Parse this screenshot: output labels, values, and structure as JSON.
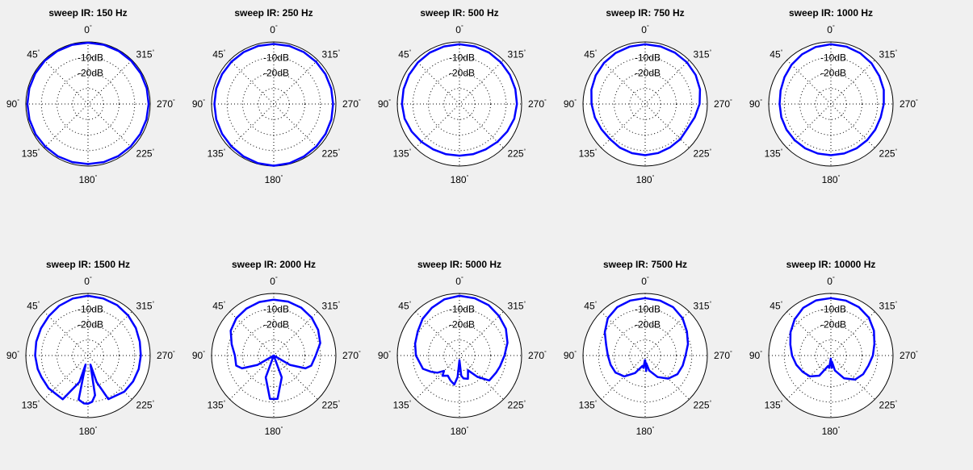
{
  "figure": {
    "background": "#f0f0f0",
    "axes_background": "#ffffff",
    "line_color": "#0000ff",
    "grid_color": "#000000"
  },
  "polar_axes": {
    "ring_labels": [
      "-10dB",
      "-20dB"
    ],
    "ring_db": [
      0,
      -10,
      -20,
      -30
    ],
    "db_range": [
      -40,
      0
    ],
    "angle_labels": [
      "0",
      "45",
      "90",
      "135",
      "180",
      "225",
      "270",
      "315"
    ],
    "angle_label_angles": [
      0,
      45,
      90,
      135,
      180,
      225,
      270,
      315
    ],
    "degree_symbol": "°",
    "zero_direction": "top",
    "angle_direction": "counterclockwise",
    "spokes_every_deg": 45,
    "grid": "dotted"
  },
  "chart_data": [
    {
      "type": "polar-line",
      "title": "sweep IR: 150 Hz",
      "angles": [
        0,
        15,
        30,
        45,
        60,
        75,
        90,
        105,
        120,
        135,
        150,
        165,
        180,
        195,
        210,
        225,
        240,
        255,
        270,
        285,
        300,
        315,
        330,
        345
      ],
      "r": [
        -0.5,
        -0.5,
        -0.6,
        -0.6,
        -0.8,
        -0.9,
        -1,
        -1,
        -1,
        -1.1,
        -1.1,
        -1.2,
        -1.3,
        -1.2,
        -1.2,
        -1.2,
        -1.2,
        -1.1,
        -1,
        -0.9,
        -0.8,
        -0.7,
        -0.6,
        -0.5
      ]
    },
    {
      "type": "polar-line",
      "title": "sweep IR: 250 Hz",
      "angles": [
        0,
        15,
        30,
        45,
        60,
        75,
        90,
        105,
        120,
        135,
        150,
        165,
        180,
        195,
        210,
        225,
        240,
        255,
        270,
        285,
        300,
        315,
        330,
        345
      ],
      "r": [
        -1.3,
        -1.3,
        -1.4,
        -1.5,
        -1.6,
        -1.7,
        -1.8,
        -1.7,
        -1.6,
        -1.4,
        -1,
        -0.5,
        -0.2,
        -0.5,
        -1,
        -1.3,
        -1.5,
        -1.6,
        -1.8,
        -1.7,
        -1.6,
        -1.5,
        -1.4,
        -1.3
      ]
    },
    {
      "type": "polar-line",
      "title": "sweep IR: 500 Hz",
      "angles": [
        0,
        15,
        30,
        45,
        60,
        75,
        90,
        105,
        120,
        135,
        150,
        165,
        180,
        195,
        210,
        225,
        240,
        255,
        270,
        285,
        300,
        315,
        330,
        345
      ],
      "r": [
        -1.5,
        -1.6,
        -1.8,
        -2.2,
        -2.5,
        -2.8,
        -3,
        -3.5,
        -4.5,
        -5.5,
        -6.2,
        -6.5,
        -6.7,
        -6.5,
        -6.2,
        -5.5,
        -4.5,
        -3.5,
        -3,
        -2.8,
        -2.5,
        -2.2,
        -1.8,
        -1.6
      ]
    },
    {
      "type": "polar-line",
      "title": "sweep IR: 750 Hz",
      "angles": [
        0,
        15,
        30,
        45,
        60,
        75,
        90,
        105,
        120,
        135,
        150,
        165,
        180,
        195,
        210,
        225,
        240,
        255,
        270,
        285,
        300,
        315,
        330,
        345
      ],
      "r": [
        -1.5,
        -1.7,
        -2,
        -2.5,
        -3.2,
        -4.2,
        -5.5,
        -6.5,
        -7.5,
        -8,
        -7.5,
        -7.2,
        -7,
        -7.3,
        -7.8,
        -8,
        -8.5,
        -7,
        -5,
        -3.5,
        -2.5,
        -2,
        -1.8,
        -1.6
      ]
    },
    {
      "type": "polar-line",
      "title": "sweep IR: 1000 Hz",
      "angles": [
        0,
        15,
        30,
        45,
        60,
        75,
        90,
        105,
        120,
        135,
        150,
        165,
        180,
        195,
        210,
        225,
        240,
        255,
        270,
        285,
        300,
        315,
        330,
        345
      ],
      "r": [
        -1.5,
        -2,
        -3,
        -4.2,
        -5.5,
        -6.5,
        -7,
        -7,
        -7,
        -7,
        -7,
        -7,
        -7,
        -7,
        -7,
        -7,
        -7,
        -6.8,
        -6,
        -4.8,
        -4,
        -3,
        -2.2,
        -1.7
      ]
    },
    {
      "type": "polar-line",
      "title": "sweep IR: 1500 Hz",
      "angles": [
        0,
        15,
        30,
        45,
        60,
        75,
        90,
        105,
        115,
        130,
        150,
        162,
        165,
        168,
        175,
        180,
        185,
        190,
        195,
        198,
        205,
        225,
        240,
        255,
        270,
        285,
        300,
        315,
        330,
        345
      ],
      "r": [
        -1.5,
        -2,
        -3,
        -4.2,
        -5,
        -5.5,
        -6,
        -6.5,
        -7,
        -7,
        -7.5,
        -22,
        -34,
        -11,
        -9,
        -9,
        -10,
        -14,
        -34,
        -22,
        -9,
        -7,
        -6.5,
        -6.2,
        -6,
        -5.5,
        -4.5,
        -3.5,
        -2.5,
        -2
      ]
    },
    {
      "type": "polar-line",
      "title": "sweep IR: 2000 Hz",
      "angles": [
        0,
        15,
        30,
        45,
        60,
        75,
        90,
        105,
        112,
        120,
        135,
        160,
        175,
        180,
        185,
        200,
        225,
        240,
        248,
        255,
        270,
        285,
        300,
        315,
        330,
        345
      ],
      "r": [
        -4,
        -4.3,
        -5,
        -6,
        -8,
        -12,
        -15,
        -15,
        -18,
        -28,
        -40,
        -25,
        -12,
        -12,
        -12,
        -25,
        -40,
        -28,
        -18,
        -15,
        -13,
        -9,
        -7,
        -5.5,
        -4.5,
        -4
      ]
    },
    {
      "type": "polar-line",
      "title": "sweep IR: 5000 Hz",
      "angles": [
        0,
        15,
        30,
        45,
        60,
        75,
        90,
        100,
        110,
        120,
        128,
        135,
        140,
        150,
        160,
        170,
        175,
        180,
        185,
        190,
        200,
        210,
        220,
        230,
        245,
        255,
        270,
        285,
        300,
        315,
        330,
        345
      ],
      "r": [
        -1.5,
        -2.5,
        -4.5,
        -6.5,
        -9,
        -10.5,
        -12,
        -14,
        -15,
        -19,
        -22,
        -26,
        -23,
        -25,
        -23,
        -21,
        -26,
        -37,
        -27,
        -25,
        -24,
        -29,
        -22,
        -15,
        -14,
        -13,
        -11,
        -8,
        -5.5,
        -4,
        -2.5,
        -1.8
      ]
    },
    {
      "type": "polar-line",
      "title": "sweep IR: 7500 Hz",
      "angles": [
        0,
        15,
        30,
        45,
        60,
        75,
        90,
        105,
        120,
        135,
        150,
        165,
        172,
        176,
        180,
        184,
        188,
        195,
        210,
        225,
        240,
        255,
        270,
        285,
        300,
        315,
        330,
        345
      ],
      "r": [
        -3,
        -3.3,
        -4,
        -6,
        -10,
        -14,
        -16,
        -17,
        -18,
        -21,
        -27,
        -33,
        -32,
        -37,
        -37,
        -30,
        -35,
        -30,
        -24,
        -19,
        -16,
        -15,
        -14,
        -11.5,
        -9,
        -6,
        -4,
        -3.3
      ]
    },
    {
      "type": "polar-line",
      "title": "sweep IR: 10000 Hz",
      "angles": [
        0,
        15,
        30,
        45,
        60,
        75,
        90,
        105,
        120,
        135,
        150,
        165,
        172,
        178,
        180,
        184,
        190,
        195,
        210,
        225,
        240,
        255,
        270,
        285,
        300,
        315,
        330,
        345
      ],
      "r": [
        -3,
        -3.2,
        -4.5,
        -7,
        -10,
        -13,
        -15,
        -17,
        -19,
        -21,
        -25,
        -33,
        -32,
        -38,
        -37,
        -32,
        -36,
        -30,
        -23,
        -18,
        -16,
        -15,
        -13,
        -11,
        -8,
        -5.5,
        -4,
        -3.3
      ]
    }
  ]
}
